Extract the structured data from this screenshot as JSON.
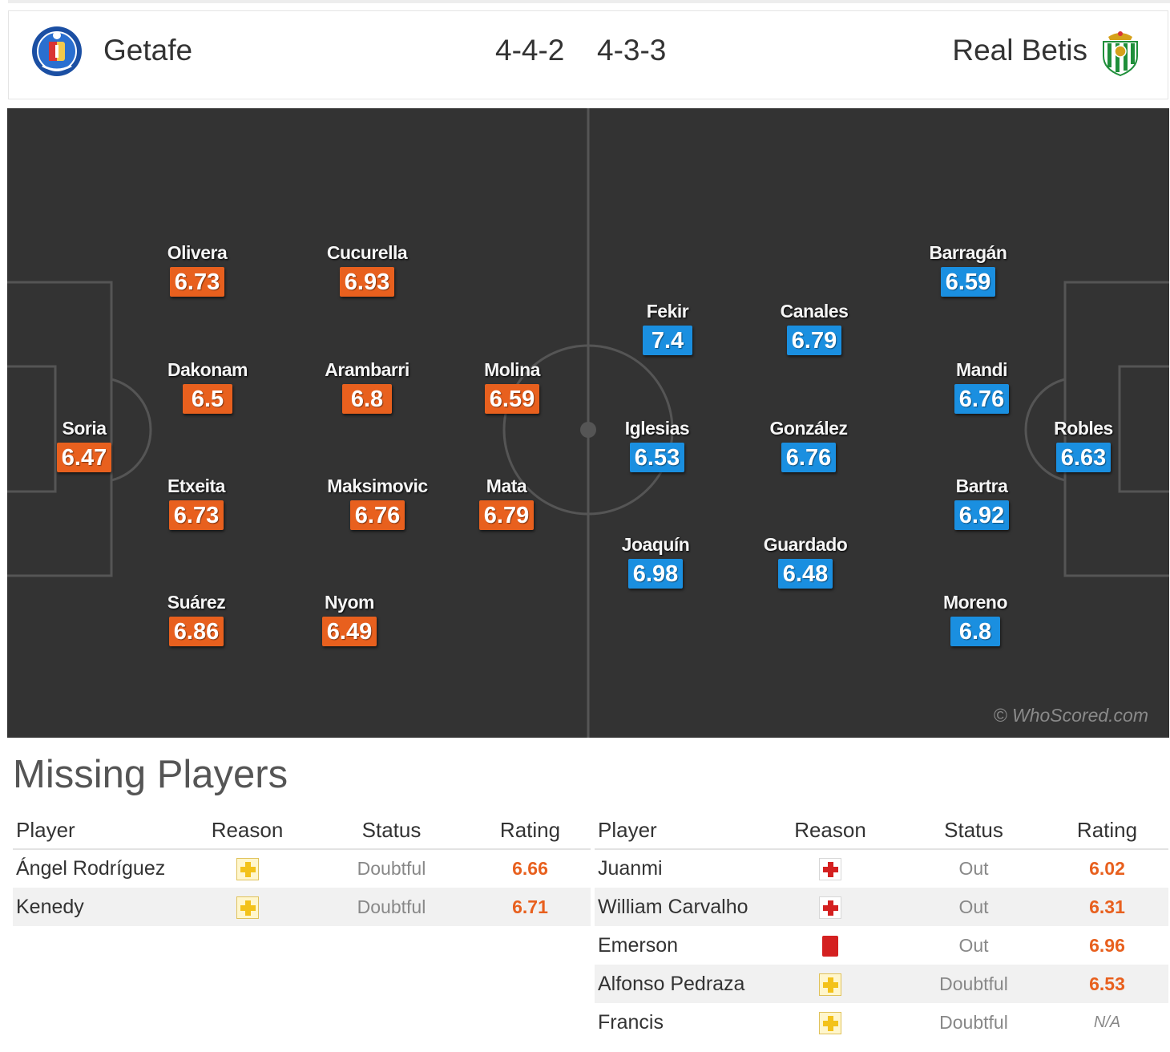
{
  "header": {
    "home_team": "Getafe",
    "away_team": "Real Betis",
    "home_formation": "4-4-2",
    "away_formation": "4-3-3"
  },
  "pitch": {
    "watermark": "© WhoScored.com",
    "colors": {
      "pitch": "#333333",
      "lines": "#555555",
      "home_rating": "#e8601e",
      "away_rating": "#1a8fe0"
    },
    "home_players": [
      {
        "name": "Soria",
        "rating": "6.47"
      },
      {
        "name": "Olivera",
        "rating": "6.73"
      },
      {
        "name": "Dakonam",
        "rating": "6.5"
      },
      {
        "name": "Etxeita",
        "rating": "6.73"
      },
      {
        "name": "Suárez",
        "rating": "6.86"
      },
      {
        "name": "Cucurella",
        "rating": "6.93"
      },
      {
        "name": "Arambarri",
        "rating": "6.8"
      },
      {
        "name": "Maksimovic",
        "rating": "6.76"
      },
      {
        "name": "Nyom",
        "rating": "6.49"
      },
      {
        "name": "Molina",
        "rating": "6.59"
      },
      {
        "name": "Mata",
        "rating": "6.79"
      }
    ],
    "away_players": [
      {
        "name": "Fekir",
        "rating": "7.4"
      },
      {
        "name": "Iglesias",
        "rating": "6.53"
      },
      {
        "name": "Joaquín",
        "rating": "6.98"
      },
      {
        "name": "Canales",
        "rating": "6.79"
      },
      {
        "name": "González",
        "rating": "6.76"
      },
      {
        "name": "Guardado",
        "rating": "6.48"
      },
      {
        "name": "Barragán",
        "rating": "6.59"
      },
      {
        "name": "Mandi",
        "rating": "6.76"
      },
      {
        "name": "Bartra",
        "rating": "6.92"
      },
      {
        "name": "Moreno",
        "rating": "6.8"
      },
      {
        "name": "Robles",
        "rating": "6.63"
      }
    ]
  },
  "missing": {
    "title": "Missing Players",
    "columns": [
      "Player",
      "Reason",
      "Status",
      "Rating"
    ],
    "home": [
      {
        "player": "Ángel Rodríguez",
        "reason_icon": "doubtful-icon",
        "status": "Doubtful",
        "rating": "6.66"
      },
      {
        "player": "Kenedy",
        "reason_icon": "doubtful-icon",
        "status": "Doubtful",
        "rating": "6.71"
      }
    ],
    "away": [
      {
        "player": "Juanmi",
        "reason_icon": "injury-icon",
        "status": "Out",
        "rating": "6.02"
      },
      {
        "player": "William Carvalho",
        "reason_icon": "injury-icon",
        "status": "Out",
        "rating": "6.31"
      },
      {
        "player": "Emerson",
        "reason_icon": "red-card-icon",
        "status": "Out",
        "rating": "6.96"
      },
      {
        "player": "Alfonso Pedraza",
        "reason_icon": "doubtful-icon",
        "status": "Doubtful",
        "rating": "6.53"
      },
      {
        "player": "Francis",
        "reason_icon": "doubtful-icon",
        "status": "Doubtful",
        "rating": "N/A"
      }
    ]
  }
}
